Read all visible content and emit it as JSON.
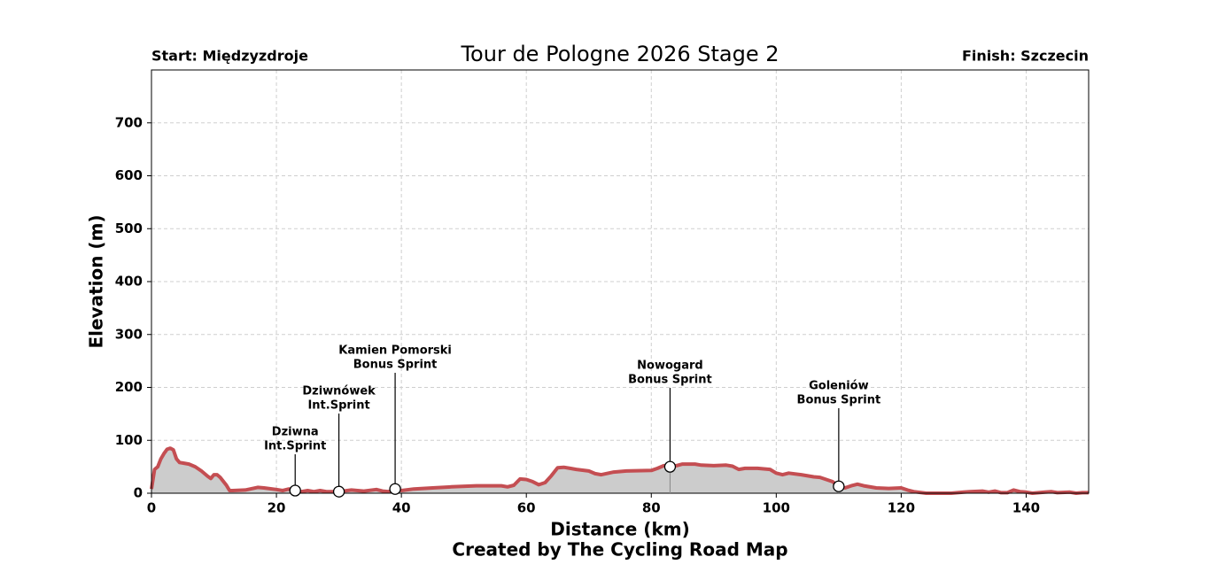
{
  "chart_data": {
    "type": "area-line",
    "title": "Tour de Pologne 2026 Stage 2",
    "start_label": "Start: Międzyzdroje",
    "finish_label": "Finish: Szczecin",
    "x_label": "Distance (km)",
    "y_label": "Elevation (m)",
    "credit": "Created by The Cycling Road Map",
    "color": "#c44e52",
    "fill_color": "#cccccc",
    "grid": true,
    "xlim": [
      0,
      150
    ],
    "ylim": [
      0,
      800
    ],
    "xticks": [
      0,
      20,
      40,
      60,
      80,
      100,
      120,
      140
    ],
    "yticks": [
      0,
      100,
      200,
      300,
      400,
      500,
      600,
      700
    ],
    "x": [
      0,
      0.5,
      1,
      1.5,
      2,
      2.5,
      3,
      3.5,
      4,
      4.5,
      5,
      6,
      7,
      8,
      9,
      9.5,
      10,
      10.5,
      11,
      12,
      12.5,
      13,
      15,
      17,
      18,
      20,
      21,
      22,
      23,
      24,
      25,
      26,
      27,
      28,
      30,
      32,
      34,
      36,
      37,
      38,
      39,
      40,
      42,
      45,
      48,
      52,
      56,
      57,
      58,
      59,
      60,
      61,
      62,
      63,
      64,
      65,
      66,
      67,
      68,
      70,
      71,
      72,
      74,
      76,
      80,
      81,
      82,
      83,
      84,
      85,
      87,
      88,
      90,
      92,
      93,
      94,
      95,
      97,
      99,
      100,
      101,
      102,
      104,
      106,
      107,
      109,
      110,
      111,
      112,
      113,
      114,
      116,
      118,
      120,
      121,
      122,
      124,
      126,
      128,
      130,
      131,
      133,
      134,
      135,
      136,
      137,
      138,
      139,
      140,
      141,
      143,
      144,
      145,
      147,
      148,
      149,
      150
    ],
    "values": [
      8,
      45,
      50,
      65,
      75,
      83,
      85,
      82,
      65,
      58,
      57,
      55,
      50,
      42,
      32,
      28,
      35,
      35,
      30,
      15,
      5,
      5,
      6,
      11,
      10,
      7,
      5,
      8,
      5,
      3,
      5,
      3,
      5,
      3,
      3,
      6,
      4,
      7,
      4,
      3,
      8,
      5,
      8,
      10,
      12,
      14,
      14,
      12,
      15,
      27,
      26,
      22,
      16,
      20,
      33,
      48,
      49,
      47,
      45,
      42,
      37,
      35,
      40,
      42,
      43,
      47,
      52,
      50,
      52,
      55,
      55,
      53,
      52,
      53,
      51,
      45,
      47,
      47,
      45,
      38,
      35,
      38,
      35,
      31,
      30,
      22,
      13,
      10,
      14,
      17,
      14,
      10,
      9,
      10,
      6,
      3,
      0,
      0,
      0,
      2,
      3,
      4,
      2,
      4,
      1,
      1,
      6,
      3,
      2,
      0,
      2,
      3,
      1,
      2,
      0,
      1,
      1
    ],
    "annotations": [
      {
        "x": 23,
        "y": 5,
        "name": "Dziwna",
        "label": "Int.Sprint"
      },
      {
        "x": 30,
        "y": 3,
        "name": "Dziwnówek",
        "label": "Int.Sprint"
      },
      {
        "x": 39,
        "y": 8,
        "name": "Kamien Pomorski",
        "label": "Bonus Sprint"
      },
      {
        "x": 83,
        "y": 50,
        "name": "Nowogard",
        "label": "Bonus Sprint"
      },
      {
        "x": 110,
        "y": 13,
        "name": "Goleniów",
        "label": "Bonus Sprint"
      }
    ]
  }
}
